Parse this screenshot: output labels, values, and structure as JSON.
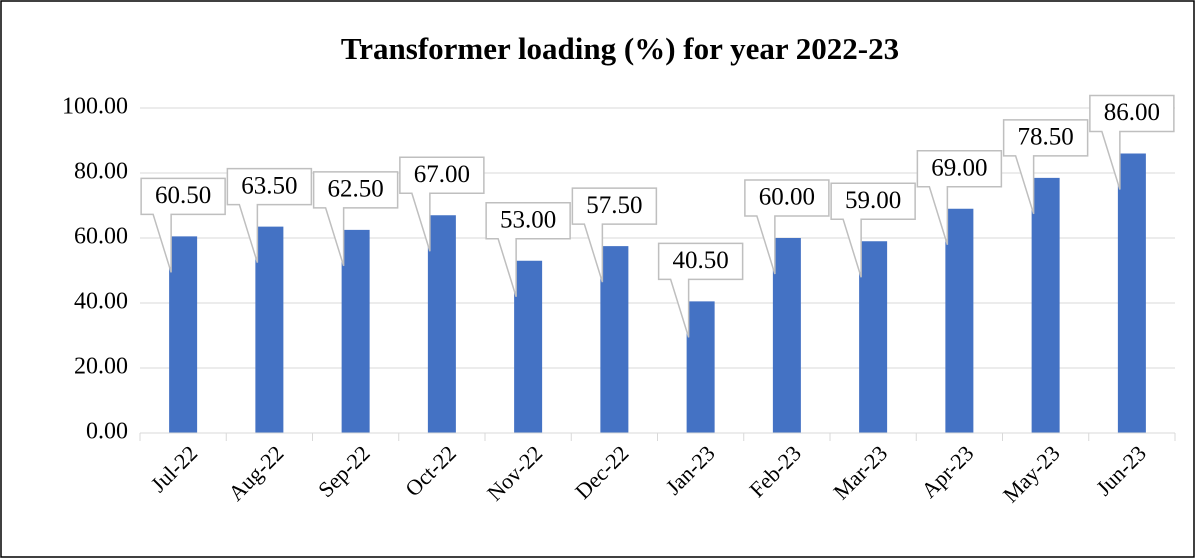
{
  "chart_data": {
    "type": "bar",
    "title": "Transformer loading (%) for year 2022-23",
    "categories": [
      "Jul-22",
      "Aug-22",
      "Sep-22",
      "Oct-22",
      "Nov-22",
      "Dec-22",
      "Jan-23",
      "Feb-23",
      "Mar-23",
      "Apr-23",
      "May-23",
      "Jun-23"
    ],
    "values": [
      60.5,
      63.5,
      62.5,
      67,
      53,
      57.5,
      40.5,
      60,
      59,
      69,
      78.5,
      86
    ],
    "value_labels": [
      "60.50",
      "63.50",
      "62.50",
      "67.00",
      "53.00",
      "57.50",
      "40.50",
      "60.00",
      "59.00",
      "69.00",
      "78.50",
      "86.00"
    ],
    "color": "#4472c4",
    "ylim": [
      0,
      100
    ],
    "yticks": [
      {
        "value": 0,
        "label": "0.00"
      },
      {
        "value": 20,
        "label": "20.00"
      },
      {
        "value": 40,
        "label": "40.00"
      },
      {
        "value": 60,
        "label": "60.00"
      },
      {
        "value": 80,
        "label": "80.00"
      },
      {
        "value": 100,
        "label": "100.00"
      }
    ],
    "grid": true
  }
}
